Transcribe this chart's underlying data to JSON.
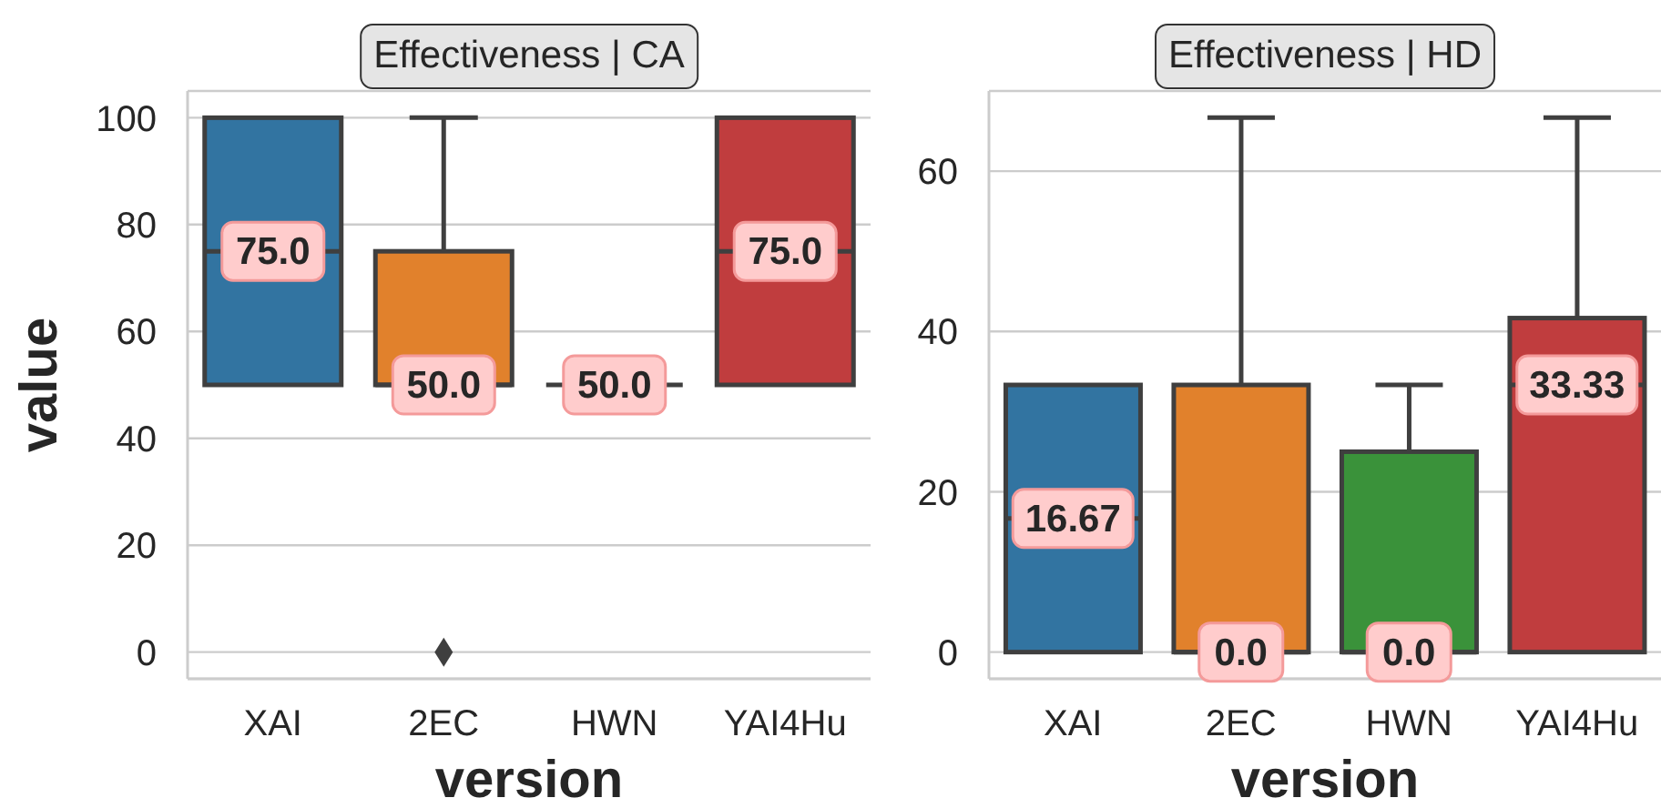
{
  "chart_data": [
    {
      "type": "box",
      "title": "Effectiveness | CA",
      "xlabel": "version",
      "ylabel": "value",
      "categories": [
        "XAI",
        "2EC",
        "HWN",
        "YAI4Hu"
      ],
      "colors": [
        "#3274a1",
        "#e1812c",
        null,
        "#c03d3e"
      ],
      "boxes": [
        {
          "low": 50,
          "q1": 50,
          "median": 75,
          "q3": 100,
          "high": 100
        },
        {
          "low": 50,
          "q1": 50,
          "median": 50,
          "q3": 75,
          "high": 100,
          "outliers": [
            0
          ]
        },
        {
          "low": 50,
          "q1": 50,
          "median": 50,
          "q3": 50,
          "high": 50
        },
        {
          "low": 50,
          "q1": 50,
          "median": 75,
          "q3": 100,
          "high": 100
        }
      ],
      "marker": "diamond",
      "ylim": [
        -5,
        105
      ],
      "yticks": [
        0,
        20,
        40,
        60,
        80,
        100
      ],
      "grid": "y",
      "annotations": [
        {
          "text": "75.0",
          "x": "XAI",
          "y": 75
        },
        {
          "text": "50.0",
          "x": "2EC",
          "y": 50
        },
        {
          "text": "50.0",
          "x": "HWN",
          "y": 50
        },
        {
          "text": "75.0",
          "x": "YAI4Hu",
          "y": 75
        }
      ]
    },
    {
      "type": "box",
      "title": "Effectiveness | HD",
      "xlabel": "version",
      "categories": [
        "XAI",
        "2EC",
        "HWN",
        "YAI4Hu"
      ],
      "colors": [
        "#3274a1",
        "#e1812c",
        "#3a923a",
        "#c03d3e"
      ],
      "boxes": [
        {
          "low": 0,
          "q1": 0,
          "median": 16.67,
          "q3": 33.33,
          "high": 33.33
        },
        {
          "low": 0,
          "q1": 0,
          "median": 0,
          "q3": 33.33,
          "high": 66.67
        },
        {
          "low": 0,
          "q1": 0,
          "median": 0,
          "q3": 25,
          "high": 33.33
        },
        {
          "low": 0,
          "q1": 0,
          "median": 33.33,
          "q3": 41.67,
          "high": 66.67
        }
      ],
      "ylim": [
        -3.33,
        70
      ],
      "yticks": [
        0,
        20,
        40,
        60
      ],
      "grid": "y",
      "annotations": [
        {
          "text": "16.67",
          "x": "XAI",
          "y": 16.67
        },
        {
          "text": "0.0",
          "x": "2EC",
          "y": 0
        },
        {
          "text": "0.0",
          "x": "HWN",
          "y": 0
        },
        {
          "text": "33.33",
          "x": "YAI4Hu",
          "y": 33.33
        }
      ]
    }
  ]
}
